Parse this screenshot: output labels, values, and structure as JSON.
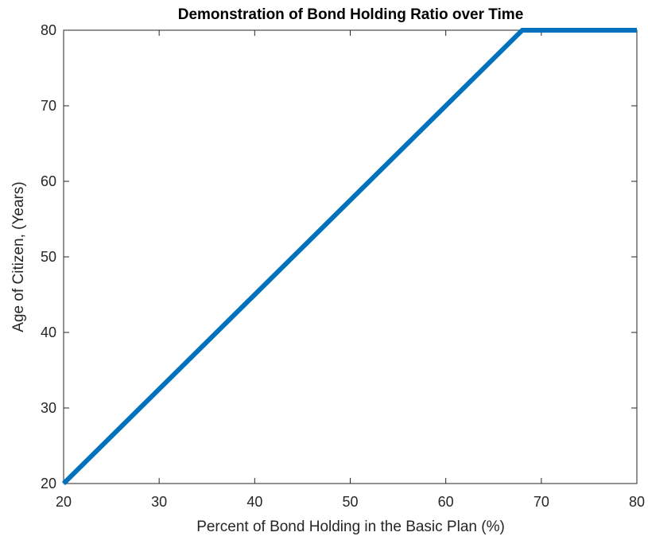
{
  "chart_data": {
    "type": "line",
    "title": "Demonstration of Bond Holding Ratio over Time",
    "xlabel": "Percent of Bond Holding in the Basic Plan (%)",
    "ylabel": "Age of Citizen, (Years)",
    "xlim": [
      20,
      80
    ],
    "ylim": [
      20,
      80
    ],
    "xticks": [
      20,
      30,
      40,
      50,
      60,
      70,
      80
    ],
    "yticks": [
      20,
      30,
      40,
      50,
      60,
      70,
      80
    ],
    "xtick_labels": [
      "20",
      "30",
      "40",
      "50",
      "60",
      "70",
      "80"
    ],
    "ytick_labels": [
      "20",
      "30",
      "40",
      "50",
      "60",
      "70",
      "80"
    ],
    "grid": false,
    "series": [
      {
        "color": "#0072BD",
        "x": [
          20,
          68,
          80
        ],
        "y": [
          20,
          80,
          80
        ]
      }
    ]
  }
}
